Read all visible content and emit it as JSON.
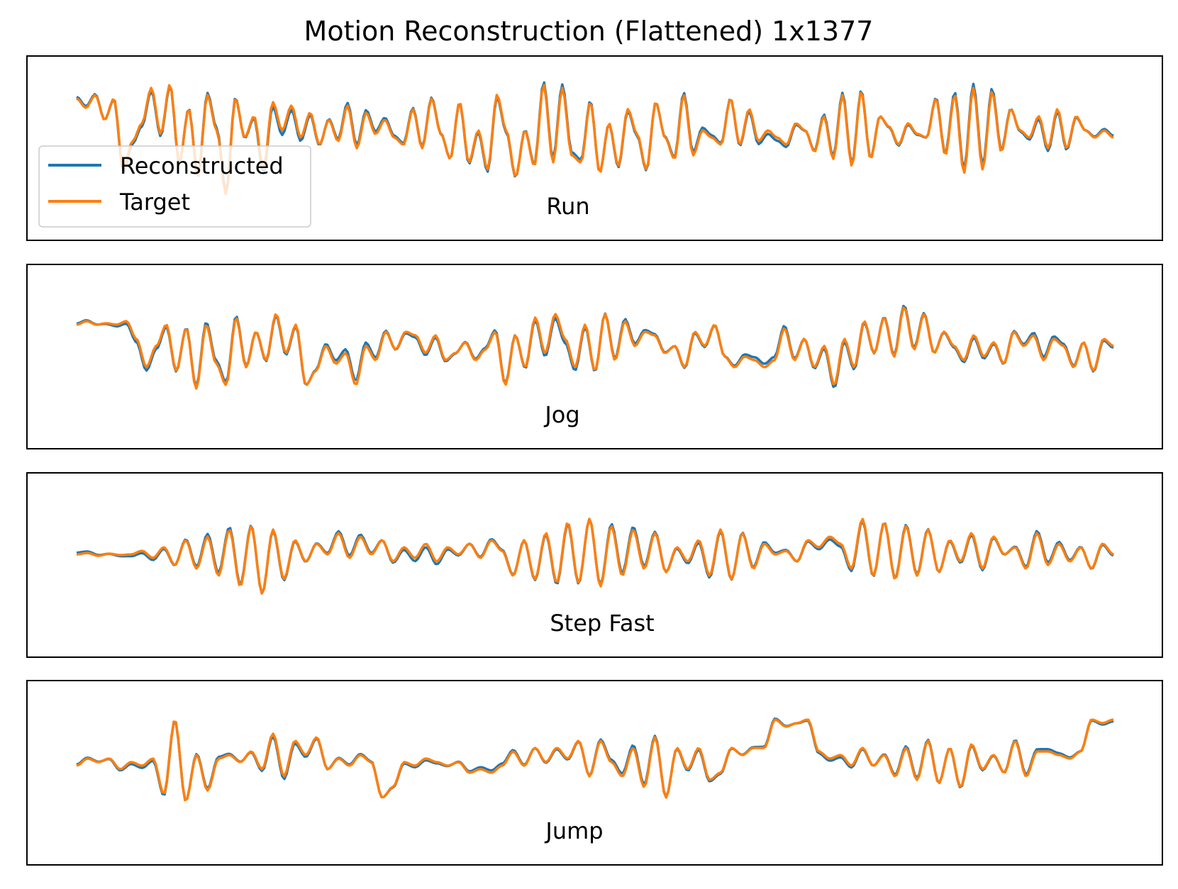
{
  "chart_data": {
    "type": "line",
    "title": "Motion Reconstruction (Flattened) 1x1377",
    "x_range": [
      0,
      1376
    ],
    "y_range": [
      -1,
      1
    ],
    "grid": false,
    "legend": {
      "placement": "inside-left of first panel",
      "entries": [
        {
          "label": "Reconstructed",
          "color": "#1f77b4"
        },
        {
          "label": "Target",
          "color": "#ff7f0e"
        }
      ]
    },
    "series_colors": {
      "reconstructed": "#1f77b4",
      "target": "#ff7f0e"
    },
    "panels": [
      {
        "label": "Run",
        "length": 1377,
        "mean": 0.0,
        "target_knots": [
          0.55,
          0.42,
          0.6,
          0.25,
          0.55,
          -0.45,
          -0.05,
          0.2,
          0.7,
          0.05,
          0.75,
          -0.35,
          0.4,
          -0.55,
          0.6,
          0.1,
          -0.8,
          0.55,
          0.0,
          0.3,
          -0.45,
          0.5,
          0.1,
          0.45,
          0.0,
          0.35,
          -0.1,
          0.25,
          -0.05,
          0.45,
          -0.15,
          0.35,
          0.05,
          0.25,
          0.0,
          -0.1,
          0.4,
          -0.15,
          0.55,
          0.05,
          -0.3,
          0.5,
          -0.35,
          0.1,
          -0.45,
          0.6,
          0.1,
          -0.55,
          0.1,
          -0.4,
          0.75,
          -0.35,
          0.7,
          -0.25,
          -0.35,
          0.5,
          -0.5,
          0.2,
          -0.4,
          0.4,
          0.05,
          -0.45,
          0.5,
          0.0,
          -0.3,
          0.6,
          -0.25,
          0.1,
          0.0,
          -0.1,
          0.55,
          -0.1,
          0.4,
          -0.05,
          0.1,
          0.0,
          -0.1,
          0.2,
          0.1,
          -0.2,
          0.3,
          -0.3,
          0.6,
          -0.4,
          0.65,
          -0.3,
          0.3,
          0.15,
          -0.1,
          0.2,
          0.05,
          0.0,
          0.55,
          -0.25,
          0.6,
          -0.5,
          0.7,
          -0.45,
          0.65,
          -0.2,
          0.4,
          0.1,
          0.0,
          0.3,
          -0.15,
          0.4,
          -0.15,
          0.3,
          0.1,
          0.0,
          0.1,
          0.0
        ],
        "recon_offsets": [
          0.03,
          -0.05,
          0.04,
          -0.08,
          0.05,
          0.02,
          -0.04,
          0.06,
          -0.03,
          0.05,
          -0.06,
          0.04,
          -0.02,
          0.07,
          -0.05,
          0.03
        ]
      },
      {
        "label": "Jog",
        "length": 1377,
        "mean": 0.0,
        "target_knots": [
          0.3,
          0.35,
          0.3,
          0.32,
          0.3,
          0.35,
          0.1,
          -0.3,
          0.0,
          0.3,
          -0.35,
          0.25,
          -0.6,
          0.3,
          -0.25,
          -0.55,
          0.4,
          -0.3,
          0.2,
          -0.2,
          0.45,
          -0.1,
          0.3,
          -0.55,
          -0.35,
          0.0,
          -0.25,
          -0.1,
          -0.55,
          0.0,
          -0.2,
          0.2,
          -0.05,
          0.2,
          0.15,
          -0.1,
          0.15,
          -0.2,
          -0.1,
          0.05,
          -0.2,
          -0.05,
          0.2,
          -0.55,
          0.15,
          -0.3,
          0.4,
          -0.1,
          0.45,
          0.1,
          -0.3,
          0.3,
          -0.35,
          0.45,
          -0.2,
          0.35,
          0.0,
          0.2,
          0.15,
          -0.1,
          0.0,
          -0.3,
          0.2,
          0.0,
          0.3,
          -0.15,
          -0.3,
          -0.15,
          -0.2,
          -0.3,
          -0.2,
          0.25,
          -0.2,
          0.1,
          -0.3,
          0.0,
          -0.55,
          0.1,
          -0.3,
          0.35,
          -0.1,
          0.4,
          -0.15,
          0.55,
          -0.05,
          0.45,
          -0.1,
          0.2,
          0.0,
          -0.2,
          0.15,
          -0.15,
          0.05,
          -0.25,
          0.2,
          0.0,
          0.15,
          -0.2,
          0.1,
          0.0,
          -0.3,
          0.05,
          -0.35,
          0.1,
          0.0
        ],
        "recon_offsets": [
          0.02,
          -0.06,
          0.05,
          -0.03,
          0.07,
          -0.04,
          0.03,
          -0.07,
          0.04,
          -0.02,
          0.06,
          -0.05,
          0.03,
          -0.04,
          0.05,
          -0.03
        ]
      },
      {
        "label": "Step Fast",
        "length": 1377,
        "mean": 0.0,
        "target_knots": [
          0.0,
          0.02,
          -0.02,
          0.01,
          -0.01,
          0.0,
          0.05,
          -0.05,
          0.1,
          -0.15,
          0.2,
          -0.2,
          0.25,
          -0.3,
          0.35,
          -0.45,
          0.4,
          -0.55,
          0.35,
          -0.35,
          0.2,
          -0.1,
          0.15,
          0.0,
          0.3,
          -0.05,
          0.25,
          0.0,
          0.2,
          -0.1,
          0.1,
          -0.05,
          0.15,
          -0.1,
          0.1,
          0.0,
          0.15,
          -0.05,
          0.2,
          0.05,
          -0.3,
          0.2,
          -0.35,
          0.3,
          -0.4,
          0.45,
          -0.4,
          0.5,
          -0.45,
          0.4,
          -0.3,
          0.35,
          -0.2,
          0.3,
          -0.25,
          0.1,
          -0.1,
          0.2,
          -0.3,
          0.35,
          -0.35,
          0.3,
          -0.2,
          0.15,
          0.0,
          0.05,
          -0.1,
          0.2,
          0.1,
          0.25,
          0.15,
          -0.2,
          0.5,
          -0.3,
          0.45,
          -0.35,
          0.4,
          -0.3,
          0.35,
          -0.25,
          0.2,
          -0.1,
          0.3,
          -0.2,
          0.25,
          0.0,
          0.1,
          -0.2,
          0.3,
          -0.15,
          0.15,
          -0.1,
          0.1,
          -0.2,
          0.15,
          0.0
        ],
        "recon_offsets": [
          0.03,
          -0.04,
          0.05,
          -0.02,
          0.04,
          -0.06,
          0.02,
          -0.03,
          0.05,
          -0.04,
          0.03,
          -0.05,
          0.02,
          -0.03,
          0.04,
          -0.02
        ]
      },
      {
        "label": "Jump",
        "length": 1377,
        "mean": 0.0,
        "target_knots": [
          -0.05,
          0.05,
          0.0,
          0.05,
          -0.1,
          0.0,
          -0.05,
          0.05,
          -0.45,
          0.6,
          -0.55,
          0.1,
          -0.4,
          0.05,
          0.1,
          0.0,
          0.15,
          -0.1,
          0.4,
          -0.2,
          0.3,
          0.1,
          0.35,
          -0.1,
          0.05,
          -0.05,
          0.1,
          0.0,
          -0.5,
          -0.35,
          0.0,
          -0.05,
          0.05,
          0.0,
          -0.05,
          0.0,
          -0.15,
          -0.1,
          -0.15,
          -0.05,
          0.15,
          -0.05,
          0.2,
          0.0,
          0.2,
          0.05,
          0.3,
          -0.2,
          0.3,
          0.0,
          -0.2,
          0.2,
          -0.35,
          0.35,
          -0.5,
          0.2,
          -0.1,
          0.2,
          -0.25,
          -0.15,
          0.2,
          0.1,
          0.2,
          0.2,
          0.6,
          0.5,
          0.55,
          0.6,
          0.15,
          0.05,
          0.1,
          -0.05,
          0.2,
          -0.05,
          0.1,
          -0.2,
          0.2,
          -0.25,
          0.3,
          -0.3,
          0.2,
          -0.35,
          0.25,
          -0.1,
          0.1,
          -0.15,
          0.3,
          -0.2,
          0.15,
          0.15,
          0.1,
          0.05,
          0.15,
          0.6,
          0.55,
          0.6
        ],
        "recon_offsets": [
          0.02,
          -0.04,
          0.03,
          -0.05,
          0.02,
          -0.03,
          0.04,
          -0.02,
          0.05,
          -0.03,
          0.02,
          -0.04,
          0.03,
          -0.02,
          0.04,
          -0.03
        ]
      }
    ]
  }
}
